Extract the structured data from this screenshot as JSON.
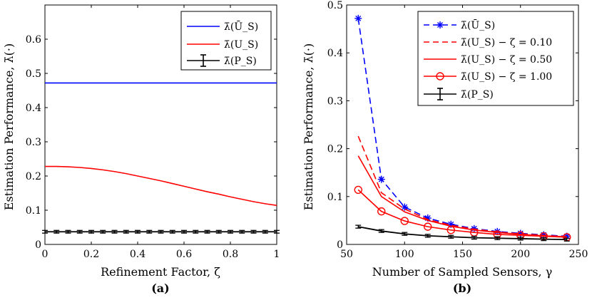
{
  "chart_data": [
    {
      "type": "line",
      "panel_label": "(a)",
      "xlabel": "Refinement Factor, ζ",
      "ylabel": "Estimation Performance, λ̄(·)",
      "xlim": [
        0,
        1
      ],
      "ylim": [
        0,
        0.7
      ],
      "xticks": [
        0,
        0.2,
        0.4,
        0.6,
        0.8,
        1
      ],
      "xtick_labels": [
        "0",
        "0.2",
        "0.4",
        "0.6",
        "0.8",
        "1"
      ],
      "yticks": [
        0,
        0.1,
        0.2,
        0.3,
        0.4,
        0.5,
        0.6
      ],
      "ytick_labels": [
        "0",
        "0.1",
        "0.2",
        "0.3",
        "0.4",
        "0.5",
        "0.6"
      ],
      "legend_position": "top-right",
      "series": [
        {
          "name": "λ̄(Ū_S)",
          "color": "#0000ff",
          "style": "solid",
          "x": [
            0,
            0.2,
            0.4,
            0.6,
            0.8,
            1
          ],
          "y": [
            0.472,
            0.472,
            0.472,
            0.472,
            0.472,
            0.472
          ]
        },
        {
          "name": "λ̄(U_S)",
          "color": "#ff0000",
          "style": "solid",
          "x": [
            0,
            0.05,
            0.1,
            0.15,
            0.2,
            0.25,
            0.3,
            0.35,
            0.4,
            0.45,
            0.5,
            0.55,
            0.6,
            0.65,
            0.7,
            0.75,
            0.8,
            0.85,
            0.9,
            0.95,
            1
          ],
          "y": [
            0.228,
            0.228,
            0.227,
            0.225,
            0.222,
            0.218,
            0.213,
            0.207,
            0.2,
            0.193,
            0.186,
            0.178,
            0.17,
            0.162,
            0.154,
            0.147,
            0.139,
            0.132,
            0.125,
            0.119,
            0.114
          ]
        },
        {
          "name": "λ̄(P_S)",
          "color": "#000000",
          "style": "errorbar",
          "x": [
            0,
            0.05,
            0.1,
            0.15,
            0.2,
            0.25,
            0.3,
            0.35,
            0.4,
            0.45,
            0.5,
            0.55,
            0.6,
            0.65,
            0.7,
            0.75,
            0.8,
            0.85,
            0.9,
            0.95,
            1
          ],
          "y": [
            0.037,
            0.037,
            0.037,
            0.037,
            0.037,
            0.037,
            0.037,
            0.037,
            0.037,
            0.037,
            0.037,
            0.037,
            0.037,
            0.037,
            0.037,
            0.037,
            0.037,
            0.037,
            0.037,
            0.037,
            0.037
          ],
          "err": 0.004
        }
      ]
    },
    {
      "type": "line",
      "panel_label": "(b)",
      "xlabel": "Number of Sampled Sensors, γ",
      "ylabel": "Estimation Performance, λ̄(·)",
      "xlim": [
        50,
        250
      ],
      "ylim": [
        0,
        0.5
      ],
      "xticks": [
        50,
        100,
        150,
        200,
        250
      ],
      "xtick_labels": [
        "50",
        "100",
        "150",
        "200",
        "250"
      ],
      "yticks": [
        0,
        0.1,
        0.2,
        0.3,
        0.4,
        0.5
      ],
      "ytick_labels": [
        "0",
        "0.1",
        "0.2",
        "0.3",
        "0.4",
        "0.5"
      ],
      "legend_position": "top-right",
      "series": [
        {
          "name": "λ̄(Ū_S)",
          "color": "#0000ff",
          "style": "dashed-star",
          "x": [
            60,
            80,
            100,
            120,
            140,
            160,
            180,
            200,
            220,
            240
          ],
          "y": [
            0.472,
            0.136,
            0.078,
            0.055,
            0.042,
            0.033,
            0.027,
            0.023,
            0.02,
            0.017
          ]
        },
        {
          "name": "λ̄(U_S) − ζ = 0.10",
          "color": "#ff0000",
          "style": "dashed",
          "x": [
            60,
            80,
            100,
            120,
            140,
            160,
            180,
            200,
            220,
            240
          ],
          "y": [
            0.226,
            0.108,
            0.074,
            0.052,
            0.04,
            0.032,
            0.026,
            0.022,
            0.019,
            0.016
          ]
        },
        {
          "name": "λ̄(U_S) − ζ = 0.50",
          "color": "#ff0000",
          "style": "solid",
          "x": [
            60,
            80,
            100,
            120,
            140,
            160,
            180,
            200,
            220,
            240
          ],
          "y": [
            0.185,
            0.1,
            0.068,
            0.05,
            0.038,
            0.03,
            0.025,
            0.021,
            0.018,
            0.016
          ]
        },
        {
          "name": "λ̄(U_S) − ζ = 1.00",
          "color": "#ff0000",
          "style": "solid-circle",
          "x": [
            60,
            80,
            100,
            120,
            140,
            160,
            180,
            200,
            220,
            240
          ],
          "y": [
            0.114,
            0.069,
            0.049,
            0.037,
            0.03,
            0.025,
            0.021,
            0.019,
            0.017,
            0.015
          ]
        },
        {
          "name": "λ̄(P_S)",
          "color": "#000000",
          "style": "errorbar",
          "x": [
            60,
            80,
            100,
            120,
            140,
            160,
            180,
            200,
            220,
            240
          ],
          "y": [
            0.037,
            0.028,
            0.022,
            0.018,
            0.016,
            0.014,
            0.013,
            0.012,
            0.011,
            0.01
          ],
          "err": 0.003
        }
      ]
    }
  ]
}
